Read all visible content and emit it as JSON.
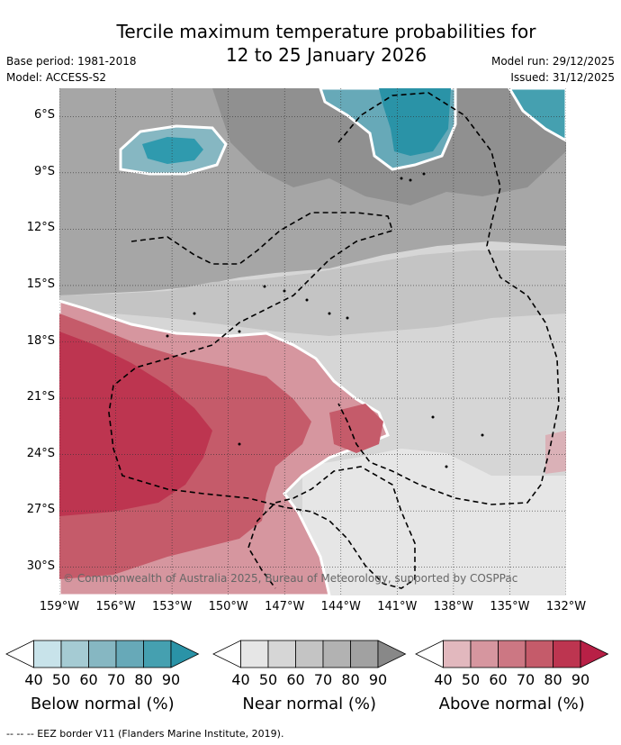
{
  "title": "Tercile maximum temperature probabilities for\n12 to 25 January 2026",
  "meta": {
    "base_period": "Base period: 1981-2018",
    "model": "Model: ACCESS-S2",
    "model_run": "Model run: 29/12/2025",
    "issued": "Issued: 31/12/2025"
  },
  "map": {
    "lat_labels": [
      "6°S",
      "9°S",
      "12°S",
      "15°S",
      "18°S",
      "21°S",
      "24°S",
      "27°S",
      "30°S"
    ],
    "lon_labels": [
      "159°W",
      "156°W",
      "153°W",
      "150°W",
      "147°W",
      "144°W",
      "141°W",
      "138°W",
      "135°W",
      "132°W"
    ],
    "copyright": "© Commonwealth of Australia 2025, Bureau of Meteorology, supported by COSPPac",
    "lat_range": [
      -31.5,
      -4.5
    ],
    "lon_range": [
      -159,
      -132
    ]
  },
  "legend": {
    "ticks": [
      "40",
      "50",
      "60",
      "70",
      "80",
      "90"
    ],
    "groups": [
      {
        "title": "Below normal (%)",
        "colors": [
          "#ffffff",
          "#c8e3ea",
          "#a5cbd3",
          "#86b7c2",
          "#67a9b8",
          "#45a0b0",
          "#2a93a7"
        ]
      },
      {
        "title": "Near normal (%)",
        "colors": [
          "#ffffff",
          "#e6e6e6",
          "#d6d6d6",
          "#c4c4c4",
          "#b2b2b2",
          "#a1a1a1",
          "#888888"
        ]
      },
      {
        "title": "Above normal (%)",
        "colors": [
          "#ffffff",
          "#e2b8be",
          "#d6969f",
          "#cc7783",
          "#c55b6a",
          "#bd3550",
          "#b82046"
        ]
      }
    ]
  },
  "footnote": "--  --  -- EEZ border V11 (Flanders Marine Institute, 2019)."
}
